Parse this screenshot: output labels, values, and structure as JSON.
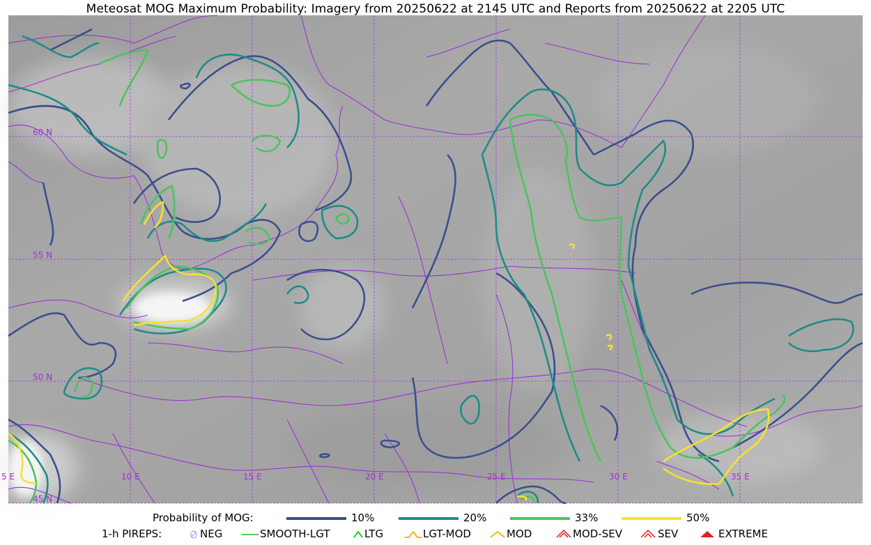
{
  "title": "Meteosat MOG Maximum Probability: Imagery from 20250622 at 2145 UTC and Reports from 20250622 at 2205 UTC",
  "map": {
    "lat_labels": [
      "60 N",
      "55 N",
      "50 N",
      "45 N"
    ],
    "lon_labels": [
      "5 E",
      "10 E",
      "15 E",
      "20 E",
      "25 E",
      "30 E",
      "35 E"
    ],
    "colors": {
      "gridline": "#9b32d2",
      "border": "#9b32d2",
      "background_gray": "#a8a8a8"
    }
  },
  "legend": {
    "probability": {
      "label": "Probability of MOG:",
      "items": [
        {
          "label": "10%",
          "color": "#3b4f8c"
        },
        {
          "label": "20%",
          "color": "#1e8c86"
        },
        {
          "label": "33%",
          "color": "#4cc35e"
        },
        {
          "label": "50%",
          "color": "#f5e32b"
        }
      ]
    },
    "pireps": {
      "label": "1-h PIREPS:",
      "items": [
        {
          "label": "NEG",
          "icon": "neg-icon",
          "color": "#b4b4f0"
        },
        {
          "label": "SMOOTH-LGT",
          "icon": "smooth-lgt-icon",
          "color": "#32c832"
        },
        {
          "label": "LTG",
          "icon": "ltg-icon",
          "color": "#1ed21e"
        },
        {
          "label": "LGT-MOD",
          "icon": "lgt-mod-icon",
          "color": "#f0b41e"
        },
        {
          "label": "MOD",
          "icon": "mod-icon",
          "color": "#f0b41e"
        },
        {
          "label": "MOD-SEV",
          "icon": "mod-sev-icon",
          "color": "#e63232"
        },
        {
          "label": "SEV",
          "icon": "sev-icon",
          "color": "#e63232"
        },
        {
          "label": "EXTREME",
          "icon": "extreme-icon",
          "color": "#e61e1e"
        }
      ]
    }
  }
}
